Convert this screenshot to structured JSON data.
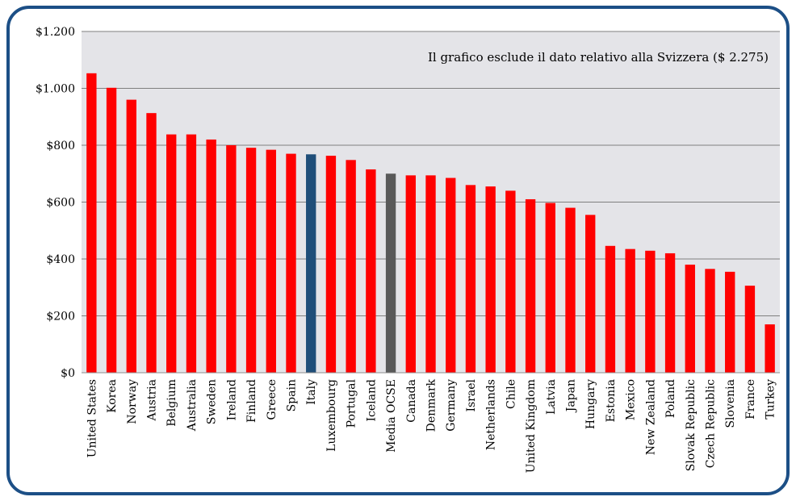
{
  "chart_data": {
    "type": "bar",
    "title": "",
    "xlabel": "",
    "ylabel": "",
    "ylim": [
      0,
      1200
    ],
    "yticks": [
      0,
      200,
      400,
      600,
      800,
      1000,
      1200
    ],
    "ytick_labels": [
      "$0",
      "$200",
      "$400",
      "$600",
      "$800",
      "$1.000",
      "$1.200"
    ],
    "grid": true,
    "annotation": "Il grafico esclude il dato relativo alla Svizzera ($ 2.275)",
    "categories": [
      "United States",
      "Korea",
      "Norway",
      "Austria",
      "Belgium",
      "Australia",
      "Sweden",
      "Ireland",
      "Finland",
      "Greece",
      "Spain",
      "Italy",
      "Luxembourg",
      "Portugal",
      "Iceland",
      "Media OCSE",
      "Canada",
      "Denmark",
      "Germany",
      "Israel",
      "Netherlands",
      "Chile",
      "United Kingdom",
      "Latvia",
      "Japan",
      "Hungary",
      "Estonia",
      "Mexico",
      "New Zealand",
      "Poland",
      "Slovak Republic",
      "Czech Republic",
      "Slovenia",
      "France",
      "Turkey"
    ],
    "values": [
      1053,
      1002,
      960,
      913,
      838,
      838,
      820,
      800,
      791,
      784,
      770,
      768,
      763,
      748,
      715,
      700,
      694,
      694,
      685,
      660,
      655,
      640,
      610,
      597,
      580,
      555,
      446,
      435,
      429,
      420,
      380,
      365,
      355,
      306,
      170
    ],
    "colors": {
      "default": "#ff0000",
      "highlight": "#1f4e79",
      "average": "#595959"
    },
    "highlight_category": "Italy",
    "average_category": "Media OCSE"
  }
}
